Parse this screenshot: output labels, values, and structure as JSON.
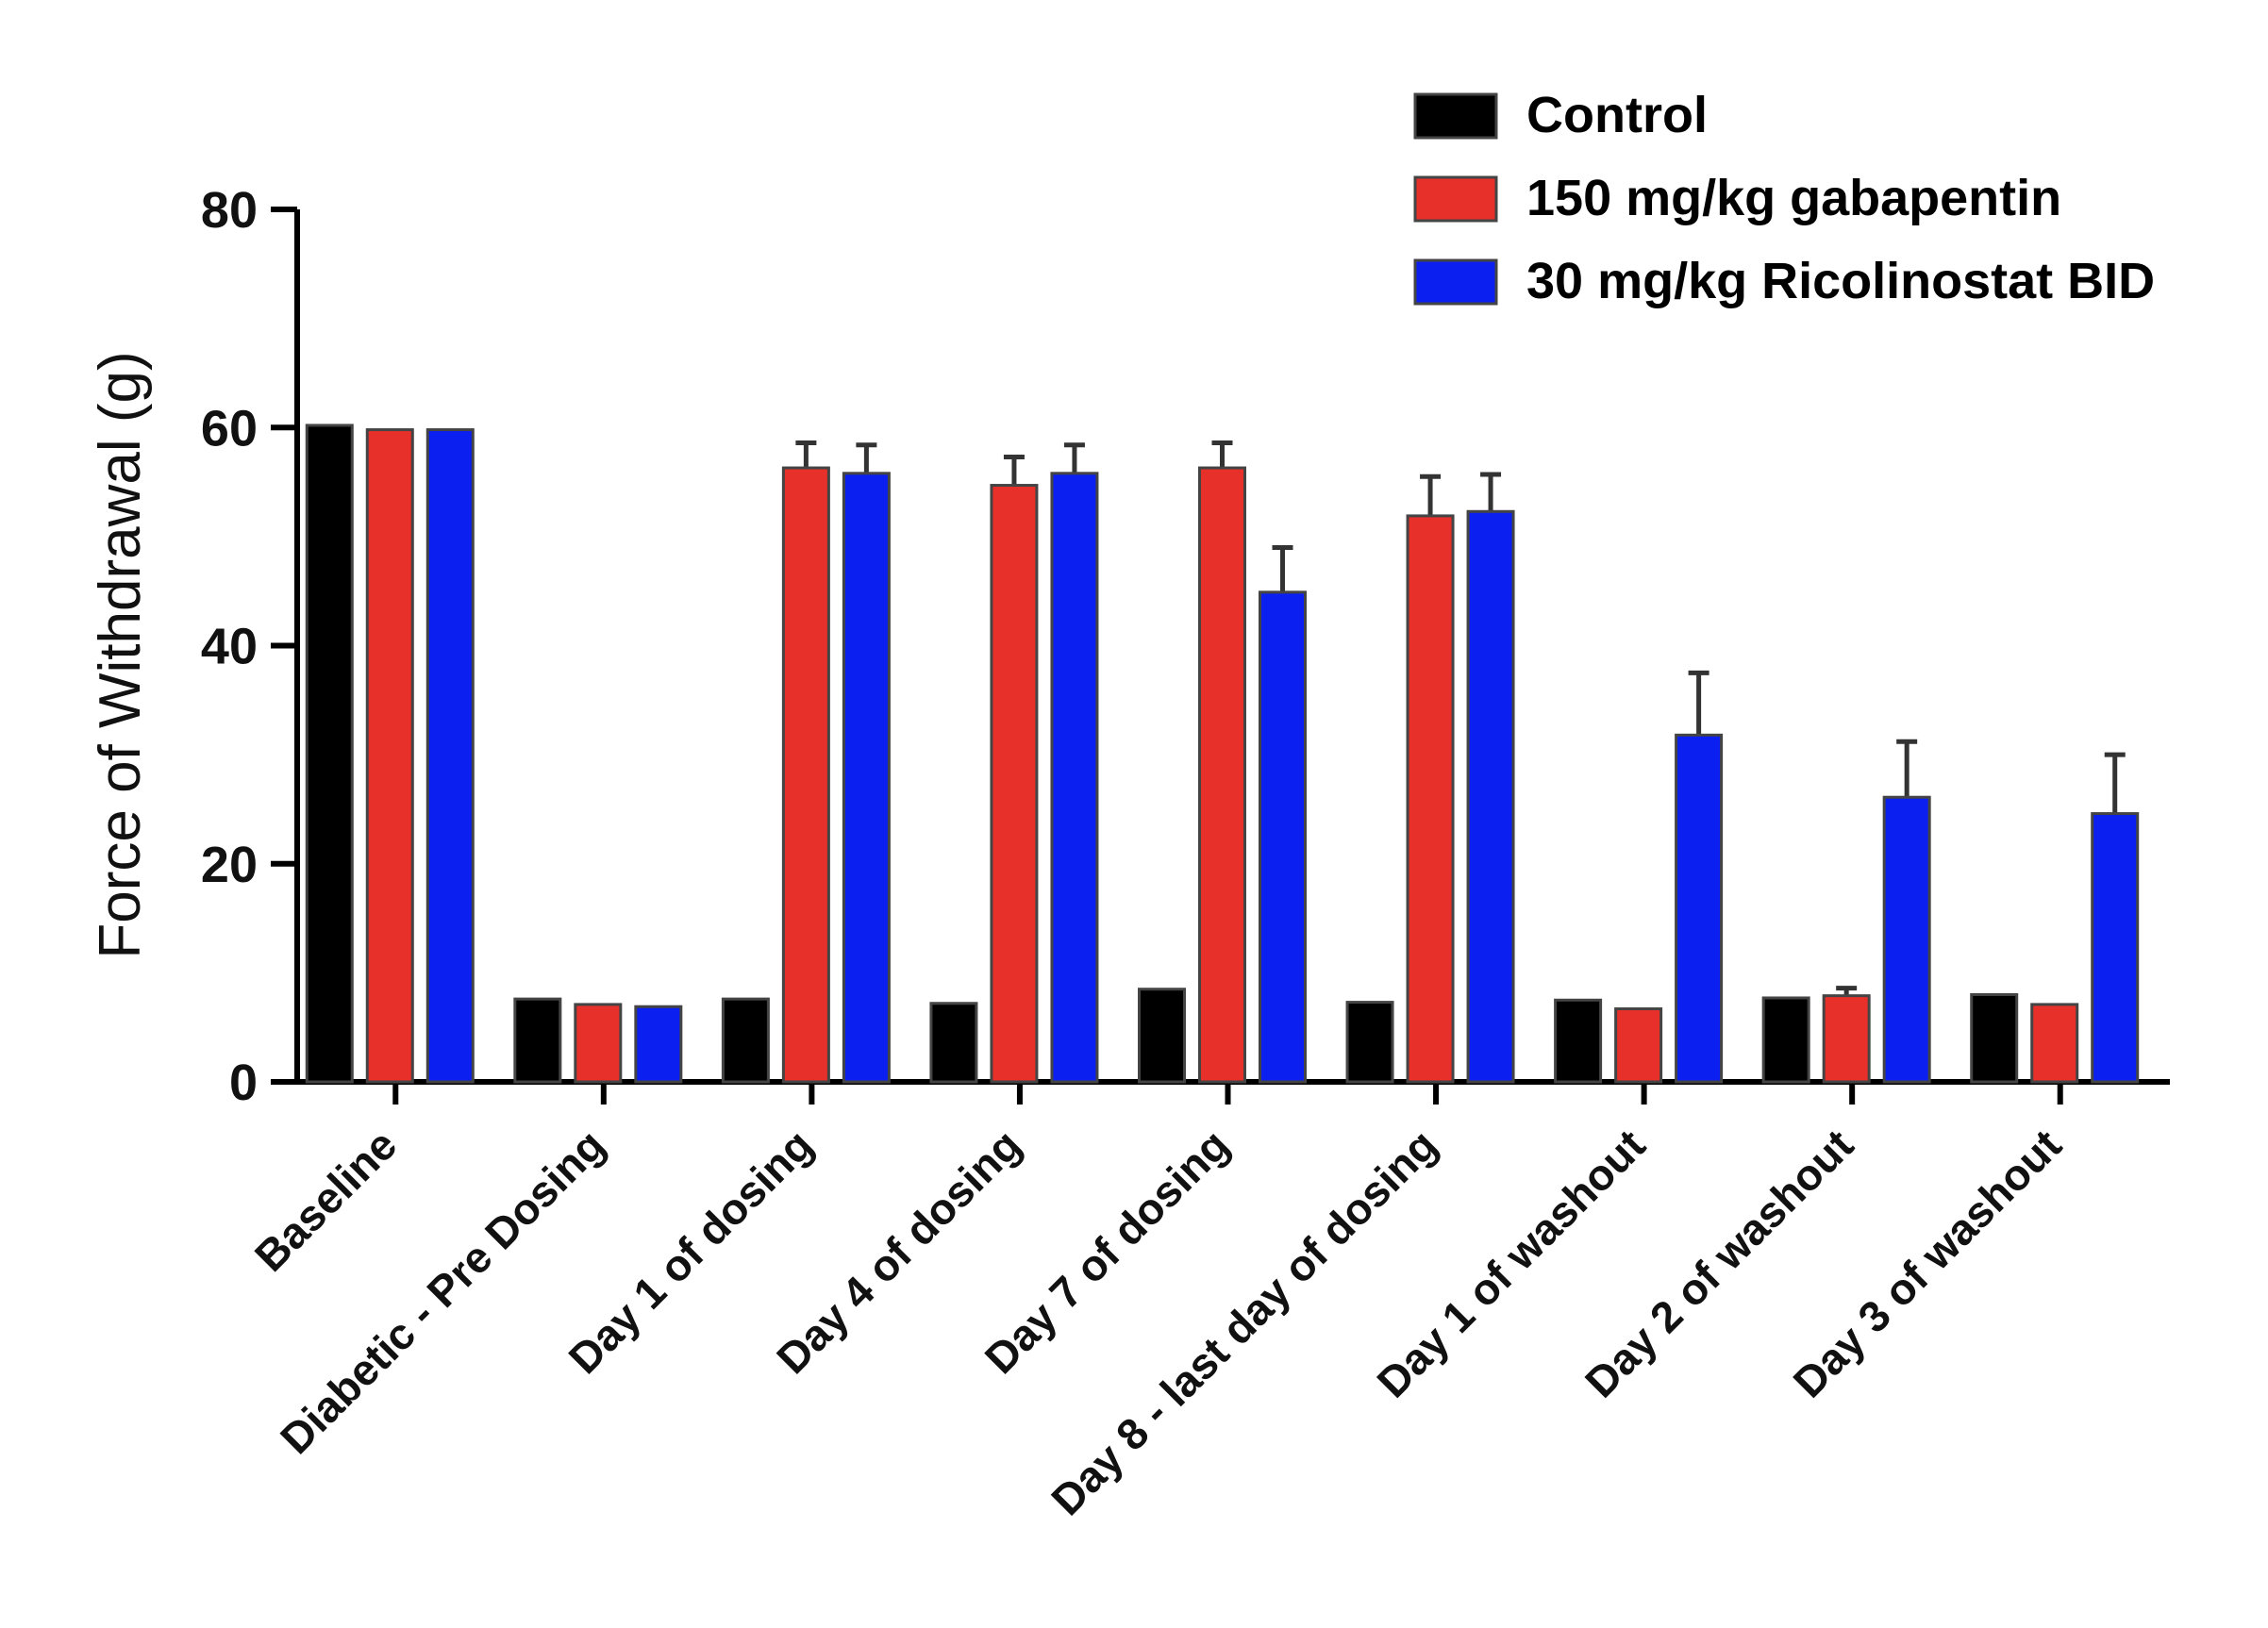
{
  "chart_data": {
    "type": "bar",
    "title": "",
    "xlabel": "",
    "ylabel": "Force of Withdrawal (g)",
    "ylim": [
      0,
      80
    ],
    "yticks": [
      0,
      20,
      40,
      60,
      80
    ],
    "legend_position": "top-right",
    "categories": [
      "Baseline",
      "Diabetic - Pre Dosing",
      "Day 1 of dosing",
      "Day 4 of dosing",
      "Day 7 of dosing",
      "Day 8 - last day of dosing",
      "Day 1 of washout",
      "Day 2 of washout",
      "Day 3 of washout"
    ],
    "series": [
      {
        "name": "Control",
        "color": "#000000",
        "values": [
          60.2,
          7.6,
          7.6,
          7.2,
          8.5,
          7.3,
          7.5,
          7.7,
          8.0
        ],
        "errors": [
          0,
          0,
          0,
          0,
          0,
          0,
          0,
          0,
          0
        ]
      },
      {
        "name": "150 mg/kg gabapentin",
        "color": "#e8302a",
        "values": [
          59.8,
          7.1,
          56.3,
          54.7,
          56.3,
          51.9,
          6.7,
          7.9,
          7.1
        ],
        "errors": [
          0,
          0,
          2.3,
          2.6,
          2.3,
          3.6,
          0,
          0.7,
          0
        ]
      },
      {
        "name": "30 mg/kg Ricolinostat BID",
        "color": "#0a1ff0",
        "values": [
          59.8,
          6.9,
          55.8,
          55.8,
          44.9,
          52.3,
          31.8,
          26.1,
          24.6
        ],
        "errors": [
          0,
          0,
          2.6,
          2.6,
          4.1,
          3.4,
          5.7,
          5.1,
          5.4
        ]
      }
    ]
  }
}
